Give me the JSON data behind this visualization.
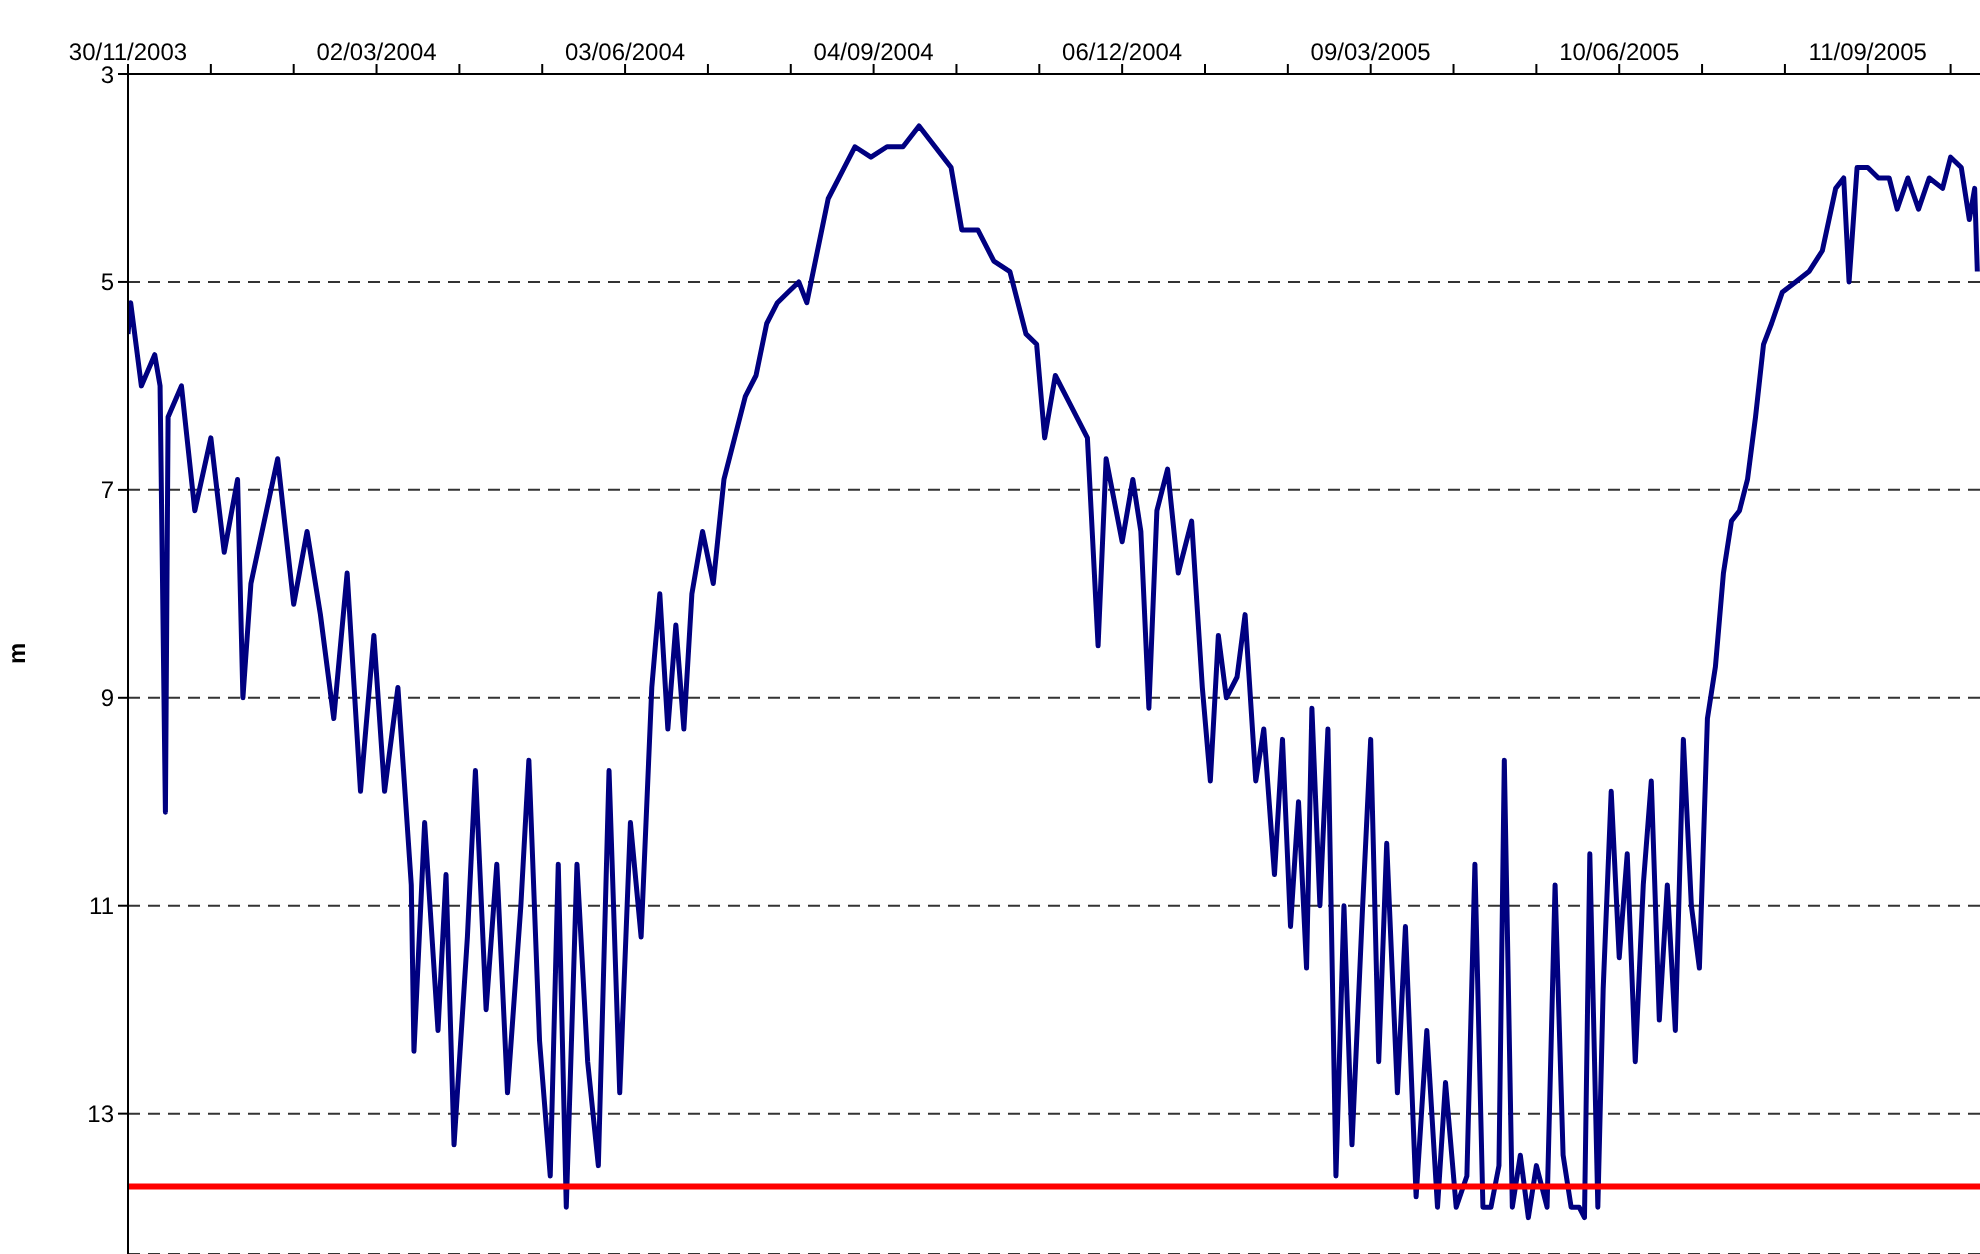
{
  "chart_data": {
    "type": "line",
    "ylabel": "m",
    "x": [
      "2003-11-30",
      "2003-12-01",
      "2003-12-05",
      "2003-12-10",
      "2003-12-12",
      "2003-12-14",
      "2003-12-15",
      "2003-12-20",
      "2003-12-25",
      "2003-12-31",
      "2004-01-05",
      "2004-01-10",
      "2004-01-12",
      "2004-01-15",
      "2004-01-20",
      "2004-01-25",
      "2004-01-31",
      "2004-02-05",
      "2004-02-10",
      "2004-02-15",
      "2004-02-20",
      "2004-02-25",
      "2004-03-01",
      "2004-03-05",
      "2004-03-10",
      "2004-03-15",
      "2004-03-16",
      "2004-03-20",
      "2004-03-25",
      "2004-03-28",
      "2004-03-31",
      "2004-04-05",
      "2004-04-08",
      "2004-04-12",
      "2004-04-16",
      "2004-04-20",
      "2004-04-25",
      "2004-04-28",
      "2004-05-02",
      "2004-05-06",
      "2004-05-09",
      "2004-05-12",
      "2004-05-16",
      "2004-05-20",
      "2004-05-24",
      "2004-05-28",
      "2004-06-01",
      "2004-06-05",
      "2004-06-09",
      "2004-06-13",
      "2004-06-16",
      "2004-06-19",
      "2004-06-22",
      "2004-06-25",
      "2004-06-28",
      "2004-07-02",
      "2004-07-06",
      "2004-07-10",
      "2004-07-14",
      "2004-07-18",
      "2004-07-22",
      "2004-07-26",
      "2004-07-30",
      "2004-08-03",
      "2004-08-07",
      "2004-08-10",
      "2004-08-14",
      "2004-08-18",
      "2004-08-24",
      "2004-08-28",
      "2004-09-03",
      "2004-09-09",
      "2004-09-15",
      "2004-09-21",
      "2004-09-27",
      "2004-10-03",
      "2004-10-07",
      "2004-10-13",
      "2004-10-19",
      "2004-10-25",
      "2004-10-31",
      "2004-11-04",
      "2004-11-07",
      "2004-11-11",
      "2004-11-17",
      "2004-11-23",
      "2004-11-27",
      "2004-11-30",
      "2004-12-06",
      "2004-12-10",
      "2004-12-13",
      "2004-12-16",
      "2004-12-19",
      "2004-12-23",
      "2004-12-27",
      "2005-01-01",
      "2005-01-05",
      "2005-01-08",
      "2005-01-11",
      "2005-01-14",
      "2005-01-18",
      "2005-01-21",
      "2005-01-25",
      "2005-01-28",
      "2005-02-01",
      "2005-02-04",
      "2005-02-07",
      "2005-02-10",
      "2005-02-13",
      "2005-02-15",
      "2005-02-18",
      "2005-02-21",
      "2005-02-24",
      "2005-02-27",
      "2005-03-02",
      "2005-03-06",
      "2005-03-09",
      "2005-03-12",
      "2005-03-15",
      "2005-03-19",
      "2005-03-22",
      "2005-03-26",
      "2005-03-30",
      "2005-04-03",
      "2005-04-06",
      "2005-04-10",
      "2005-04-14",
      "2005-04-17",
      "2005-04-20",
      "2005-04-23",
      "2005-04-26",
      "2005-04-28",
      "2005-05-01",
      "2005-05-04",
      "2005-05-07",
      "2005-05-10",
      "2005-05-14",
      "2005-05-17",
      "2005-05-20",
      "2005-05-23",
      "2005-05-26",
      "2005-05-28",
      "2005-05-30",
      "2005-06-02",
      "2005-06-04",
      "2005-06-07",
      "2005-06-10",
      "2005-06-13",
      "2005-06-16",
      "2005-06-19",
      "2005-06-22",
      "2005-06-25",
      "2005-06-28",
      "2005-07-01",
      "2005-07-04",
      "2005-07-07",
      "2005-07-10",
      "2005-07-13",
      "2005-07-16",
      "2005-07-19",
      "2005-07-22",
      "2005-07-25",
      "2005-07-28",
      "2005-07-31",
      "2005-08-03",
      "2005-08-06",
      "2005-08-10",
      "2005-08-15",
      "2005-08-20",
      "2005-08-25",
      "2005-08-30",
      "2005-09-02",
      "2005-09-04",
      "2005-09-07",
      "2005-09-11",
      "2005-09-15",
      "2005-09-19",
      "2005-09-22",
      "2005-09-26",
      "2005-09-30",
      "2005-10-04",
      "2005-10-09",
      "2005-10-12",
      "2005-10-16",
      "2005-10-19",
      "2005-10-21",
      "2005-10-22"
    ],
    "series": [
      {
        "color": "#000080",
        "values": [
          5.5,
          5.2,
          6.0,
          5.7,
          6.0,
          10.1,
          6.3,
          6.0,
          7.2,
          6.5,
          7.6,
          6.9,
          9.0,
          7.9,
          7.3,
          6.7,
          8.1,
          7.4,
          8.2,
          9.2,
          7.8,
          9.9,
          8.4,
          9.9,
          8.9,
          10.8,
          12.4,
          10.2,
          12.2,
          10.7,
          13.3,
          11.3,
          9.7,
          12.0,
          10.6,
          12.8,
          11.0,
          9.6,
          12.3,
          13.6,
          10.6,
          13.9,
          10.6,
          12.5,
          13.5,
          9.7,
          12.8,
          10.2,
          11.3,
          8.9,
          8.0,
          9.3,
          8.3,
          9.3,
          8.0,
          7.4,
          7.9,
          6.9,
          6.5,
          6.1,
          5.9,
          5.4,
          5.2,
          5.1,
          5.0,
          5.2,
          4.7,
          4.2,
          3.9,
          3.7,
          3.8,
          3.7,
          3.7,
          3.5,
          3.7,
          3.9,
          4.5,
          4.5,
          4.8,
          4.9,
          5.5,
          5.6,
          6.5,
          5.9,
          6.2,
          6.5,
          8.5,
          6.7,
          7.5,
          6.9,
          7.4,
          9.1,
          7.2,
          6.8,
          7.8,
          7.3,
          8.9,
          9.8,
          8.4,
          9.0,
          8.8,
          8.2,
          9.8,
          9.3,
          10.7,
          9.4,
          11.2,
          10.0,
          11.6,
          9.1,
          11.0,
          9.3,
          13.6,
          11.0,
          13.3,
          11.0,
          9.4,
          12.5,
          10.4,
          12.8,
          11.2,
          13.8,
          12.2,
          13.9,
          12.7,
          13.9,
          13.6,
          10.6,
          13.9,
          13.9,
          13.5,
          9.6,
          13.9,
          13.4,
          14.0,
          13.5,
          13.9,
          10.8,
          13.4,
          13.9,
          13.9,
          14.0,
          10.5,
          13.9,
          11.8,
          9.9,
          11.5,
          10.5,
          12.5,
          10.8,
          9.8,
          12.1,
          10.8,
          12.2,
          9.4,
          11.0,
          11.6,
          9.2,
          8.7,
          7.8,
          7.3,
          7.2,
          6.9,
          6.3,
          5.6,
          5.4,
          5.1,
          5.0,
          4.9,
          4.7,
          4.1,
          4.0,
          5.0,
          3.9,
          3.9,
          4.0,
          4.0,
          4.3,
          4.0,
          4.3,
          4.0,
          4.1,
          3.8,
          3.9,
          4.4,
          4.1,
          4.9
        ]
      }
    ],
    "xlim": [
      "2003-11-30",
      "2005-10-23"
    ],
    "xticks": [
      {
        "value": "2003-11-30",
        "label": "30/11/2003"
      },
      {
        "value": "2003-12-31",
        "label": null
      },
      {
        "value": "2004-01-31",
        "label": null
      },
      {
        "value": "2004-03-02",
        "label": "02/03/2004"
      },
      {
        "value": "2004-04-02",
        "label": null
      },
      {
        "value": "2004-05-03",
        "label": null
      },
      {
        "value": "2004-06-03",
        "label": "03/06/2004"
      },
      {
        "value": "2004-07-04",
        "label": null
      },
      {
        "value": "2004-08-04",
        "label": null
      },
      {
        "value": "2004-09-04",
        "label": "04/09/2004"
      },
      {
        "value": "2004-10-05",
        "label": null
      },
      {
        "value": "2004-11-05",
        "label": null
      },
      {
        "value": "2004-12-06",
        "label": "06/12/2004"
      },
      {
        "value": "2005-01-06",
        "label": null
      },
      {
        "value": "2005-02-06",
        "label": null
      },
      {
        "value": "2005-03-09",
        "label": "09/03/2005"
      },
      {
        "value": "2005-04-09",
        "label": null
      },
      {
        "value": "2005-05-10",
        "label": null
      },
      {
        "value": "2005-06-10",
        "label": "10/06/2005"
      },
      {
        "value": "2005-07-11",
        "label": null
      },
      {
        "value": "2005-08-11",
        "label": null
      },
      {
        "value": "2005-09-11",
        "label": "11/09/2005"
      },
      {
        "value": "2005-10-12",
        "label": null
      }
    ],
    "ylim": [
      14.35,
      3
    ],
    "yticks": [
      3,
      5,
      7,
      9,
      11,
      13
    ],
    "grid": "y",
    "ref_lines": [
      {
        "axis": "y",
        "value": 13.7,
        "color": "#ff0000"
      }
    ]
  }
}
